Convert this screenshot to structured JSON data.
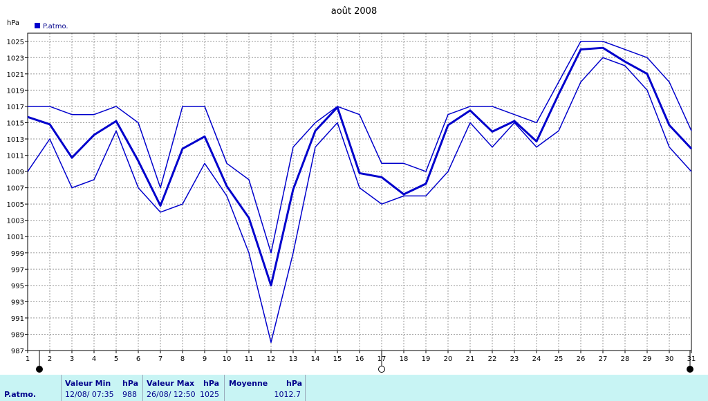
{
  "chart_data": {
    "type": "line",
    "title": "août 2008",
    "ylabel": "hPa",
    "legend": "P.atmo.",
    "legend_position": "top-left",
    "color": "#0000cc",
    "grid": true,
    "ylim": [
      987,
      1026
    ],
    "y_ticks": [
      987,
      989,
      991,
      993,
      995,
      997,
      999,
      1001,
      1003,
      1005,
      1007,
      1009,
      1011,
      1013,
      1015,
      1017,
      1019,
      1021,
      1023,
      1025
    ],
    "x": [
      1,
      2,
      3,
      4,
      5,
      6,
      7,
      8,
      9,
      10,
      11,
      12,
      13,
      14,
      15,
      16,
      17,
      18,
      19,
      20,
      21,
      22,
      23,
      24,
      25,
      26,
      27,
      28,
      29,
      30,
      31
    ],
    "series": [
      {
        "role": "max",
        "values": [
          1017,
          1017,
          1016,
          1016,
          1017,
          1015,
          1007,
          1017,
          1017,
          1010,
          1008,
          999,
          1012,
          1015,
          1017,
          1016,
          1010,
          1010,
          1009,
          1016,
          1017,
          1017,
          1016,
          1015,
          1020,
          1025,
          1025,
          1024,
          1023,
          1020,
          1014
        ]
      },
      {
        "role": "mean",
        "values": [
          1015.7,
          1014.8,
          1010.7,
          1013.5,
          1015.2,
          1010.3,
          1004.8,
          1011.8,
          1013.3,
          1007.2,
          1003.3,
          995,
          1006.8,
          1014,
          1016.9,
          1008.8,
          1008.3,
          1006.2,
          1007.5,
          1014.7,
          1016.5,
          1013.9,
          1015.2,
          1012.7,
          1018.5,
          1024,
          1024.2,
          1022.5,
          1021,
          1014.7,
          1011.8
        ]
      },
      {
        "role": "min",
        "values": [
          1009,
          1013,
          1007,
          1008,
          1014,
          1007,
          1004,
          1005,
          1010,
          1006,
          999,
          988,
          999,
          1012,
          1015,
          1007,
          1005,
          1006,
          1006,
          1009,
          1015,
          1012,
          1015,
          1012,
          1014,
          1020,
          1023,
          1022,
          1019,
          1012,
          1009
        ]
      }
    ],
    "moon_markers": [
      {
        "day": 1,
        "phase": "new-moon"
      },
      {
        "day": 17,
        "phase": "full-moon"
      },
      {
        "day": 31,
        "phase": "new-moon"
      }
    ]
  },
  "stats": {
    "row_label": "P.atmo.",
    "min_header": "Valeur Min",
    "min_unit": "hPa",
    "min_when": "12/08/  07:35",
    "min_value": "988",
    "max_header": "Valeur Max",
    "max_unit": "hPa",
    "max_when": "26/08/  12:50",
    "max_value": "1025",
    "avg_header": "Moyenne",
    "avg_unit": "hPa",
    "avg_value": "1012.7"
  }
}
